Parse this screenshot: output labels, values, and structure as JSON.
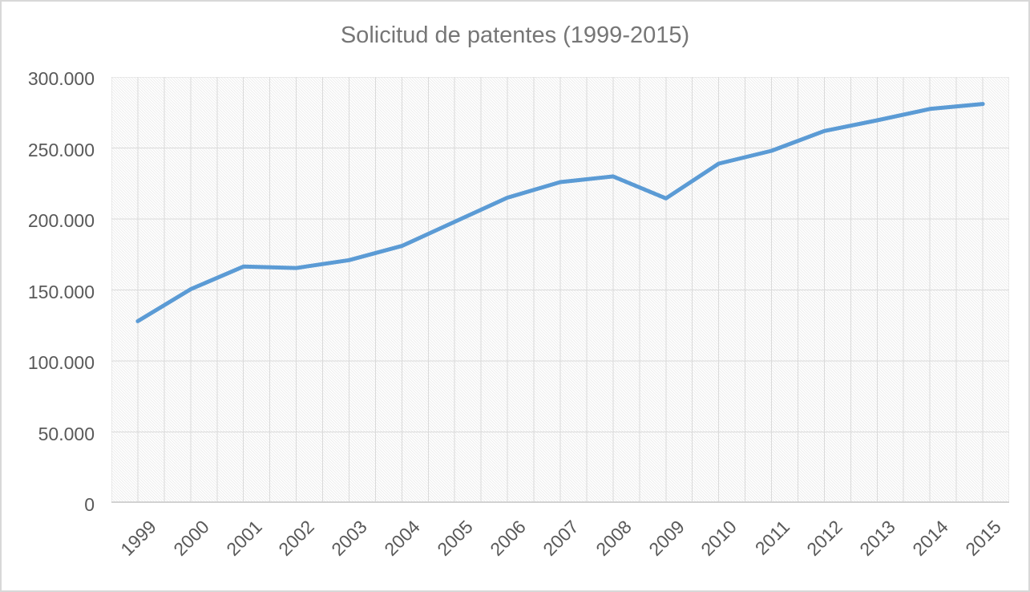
{
  "chart_data": {
    "type": "line",
    "title": "Solicitud de patentes (1999-2015)",
    "categories": [
      "1999",
      "2000",
      "2001",
      "2002",
      "2003",
      "2004",
      "2005",
      "2006",
      "2007",
      "2008",
      "2009",
      "2010",
      "2011",
      "2012",
      "2013",
      "2014",
      "2015"
    ],
    "values": [
      128000,
      150500,
      166500,
      165500,
      171000,
      181000,
      198000,
      215000,
      226000,
      230000,
      214500,
      239000,
      248000,
      262000,
      269500,
      277500,
      281000
    ],
    "ylim": [
      0,
      300000
    ],
    "y_ticks": [
      0,
      50000,
      100000,
      150000,
      200000,
      250000,
      300000
    ],
    "y_tick_labels": [
      "0",
      "50.000",
      "100.000",
      "150.000",
      "200.000",
      "250.000",
      "300.000"
    ],
    "x_label_rotation_deg": -45,
    "legend": "none",
    "grid": true,
    "vertical_gridlines": "every half category",
    "plot_area_fill": "diagonal hatch",
    "colors": {
      "line": "#5B9BD5",
      "gridline": "#DADADA",
      "axis_line": "#D2D2D2",
      "hatch": "#EAEAEA",
      "title_text": "#767676",
      "tick_text": "#595959",
      "chart_border": "#D8D8D8"
    }
  }
}
